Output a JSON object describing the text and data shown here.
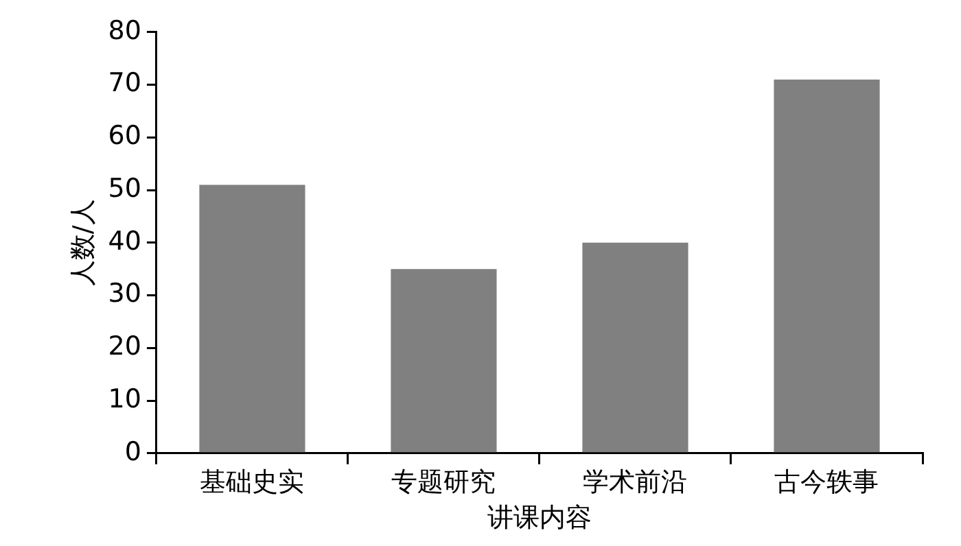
{
  "chart_data": {
    "type": "bar",
    "xlabel": "讲课内容",
    "ylabel": "人数/人",
    "categories": [
      "基础史实",
      "专题研究",
      "学术前沿",
      "古今轶事"
    ],
    "values": [
      51,
      35,
      40,
      71
    ],
    "color": "#808080",
    "ylim": [
      0,
      80
    ],
    "yticks": [
      0,
      10,
      20,
      30,
      40,
      50,
      60,
      70,
      80
    ],
    "grid": false,
    "legend": false
  }
}
